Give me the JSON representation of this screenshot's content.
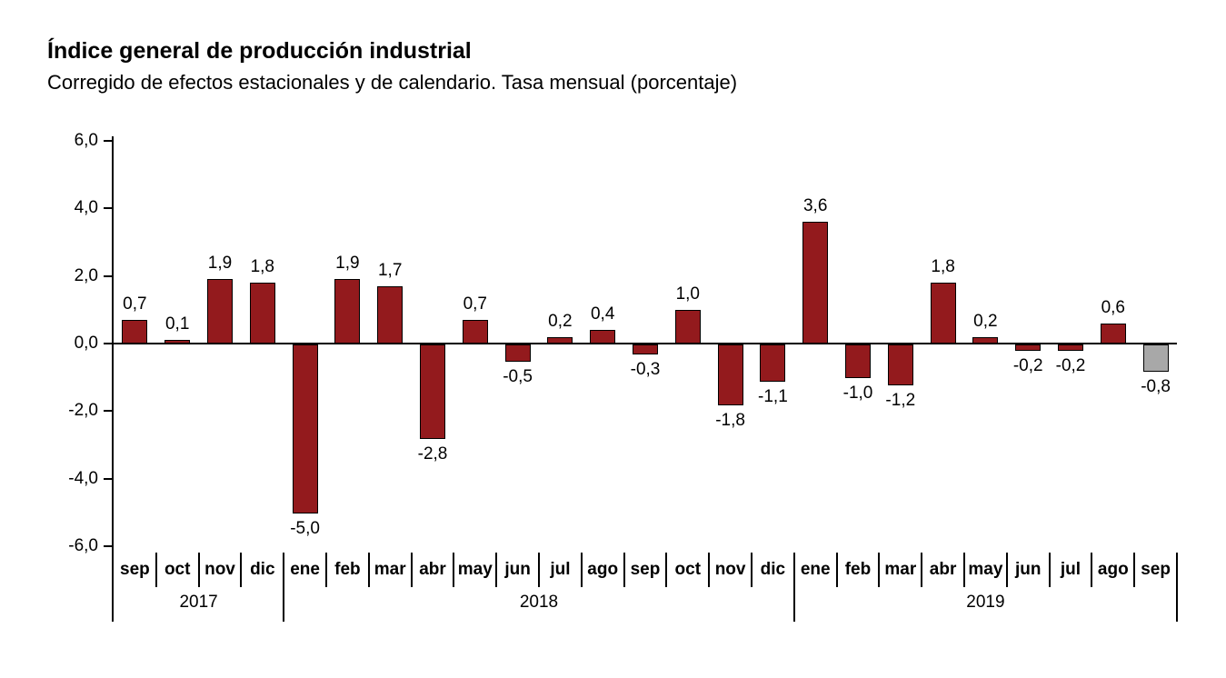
{
  "title": "Índice general de producción industrial",
  "subtitle": "Corregido de efectos estacionales y de calendario. Tasa mensual (porcentaje)",
  "chart_data": {
    "type": "bar",
    "categories": [
      "sep",
      "oct",
      "nov",
      "dic",
      "ene",
      "feb",
      "mar",
      "abr",
      "may",
      "jun",
      "jul",
      "ago",
      "sep",
      "oct",
      "nov",
      "dic",
      "ene",
      "feb",
      "mar",
      "abr",
      "may",
      "jun",
      "jul",
      "ago",
      "sep"
    ],
    "values": [
      0.7,
      0.1,
      1.9,
      1.8,
      -5.0,
      1.9,
      1.7,
      -2.8,
      0.7,
      -0.5,
      0.2,
      0.4,
      -0.3,
      1.0,
      -1.8,
      -1.1,
      3.6,
      -1.0,
      -1.2,
      1.8,
      0.2,
      -0.2,
      -0.2,
      0.6,
      -0.8
    ],
    "labels": [
      "0,7",
      "0,1",
      "1,9",
      "1,8",
      "-5,0",
      "1,9",
      "1,7",
      "-2,8",
      "0,7",
      "-0,5",
      "0,2",
      "0,4",
      "-0,3",
      "1,0",
      "-1,8",
      "-1,1",
      "3,6",
      "-1,0",
      "-1,2",
      "1,8",
      "0,2",
      "-0,2",
      "-0,2",
      "0,6",
      "-0,8"
    ],
    "year_groups": [
      {
        "label": "2017",
        "start": 0,
        "count": 4
      },
      {
        "label": "2018",
        "start": 4,
        "count": 12
      },
      {
        "label": "2019",
        "start": 16,
        "count": 9
      }
    ],
    "y_ticks": [
      "6,0",
      "4,0",
      "2,0",
      "0,0",
      "-2,0",
      "-4,0",
      "-6,0"
    ],
    "ylim": [
      -6,
      6
    ],
    "ytick_step": 2,
    "grid": "zero-line-only",
    "legend": "none",
    "bar_color": "#931A1D",
    "bar_border_color": "#000000",
    "provisional_bar": {
      "index": 24,
      "color": "#A8A8A8"
    }
  }
}
